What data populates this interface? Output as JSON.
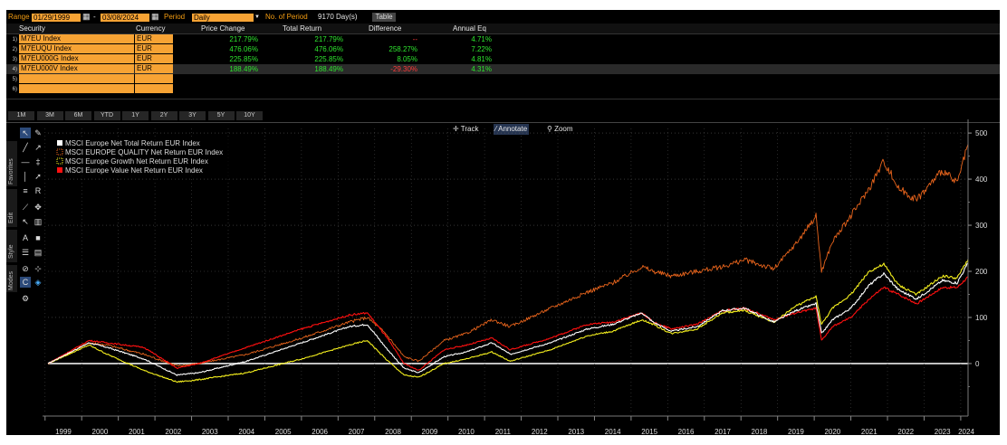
{
  "header": {
    "range_label": "Range",
    "range_start": "01/29/1999",
    "range_sep": "-",
    "range_end": "03/08/2024",
    "period_label": "Period",
    "period_value": "Daily",
    "num_period_label": "No. of Period",
    "num_period_value": "9170 Day(s)",
    "table_button": "Table"
  },
  "table": {
    "columns": [
      "Security",
      "Currency",
      "Price Change",
      "Total Return",
      "Difference",
      "Annual Eq"
    ],
    "rows": [
      {
        "num": "1)",
        "security": "M7EU Index",
        "currency": "EUR",
        "price_change": "217.79%",
        "total_return": "217.79%",
        "difference": "--",
        "annual_eq": "4.71%"
      },
      {
        "num": "2)",
        "security": "M7EUQU Index",
        "currency": "EUR",
        "price_change": "476.06%",
        "total_return": "476.06%",
        "difference": "258.27%",
        "annual_eq": "7.22%"
      },
      {
        "num": "3)",
        "security": "M7EU000G Index",
        "currency": "EUR",
        "price_change": "225.85%",
        "total_return": "225.85%",
        "difference": "8.05%",
        "annual_eq": "4.81%"
      },
      {
        "num": "4)",
        "security": "M7EU000V Index",
        "currency": "EUR",
        "price_change": "188.49%",
        "total_return": "188.49%",
        "difference": "-29.30%",
        "annual_eq": "4.31%"
      },
      {
        "num": "5)",
        "security": "",
        "currency": ""
      },
      {
        "num": "6)",
        "security": "",
        "currency": ""
      }
    ]
  },
  "timeframes": [
    "1M",
    "3M",
    "6M",
    "YTD",
    "1Y",
    "2Y",
    "3Y",
    "5Y",
    "10Y"
  ],
  "chart_toolbar": {
    "track": "Track",
    "annotate": "Annotate",
    "zoom": "Zoom"
  },
  "side_tabs": [
    "Favorites",
    "Edit",
    "Style",
    "Modes"
  ],
  "colors": {
    "accent": "#f7a334",
    "white_series": "#ffffff",
    "quality": "#e8641c",
    "growth": "#f5f01e",
    "value": "#ff1010",
    "positive": "#2ee52e",
    "negative": "#ff3b3b"
  },
  "chart_data": {
    "type": "line",
    "x_ticks": [
      "1999",
      "2000",
      "2001",
      "2002",
      "2003",
      "2004",
      "2005",
      "2006",
      "2007",
      "2008",
      "2009",
      "2010",
      "2011",
      "2012",
      "2013",
      "2014",
      "2015",
      "2016",
      "2017",
      "2018",
      "2019",
      "2020",
      "2021",
      "2022",
      "2023",
      "2024"
    ],
    "y_ticks": [
      500,
      400,
      300,
      200,
      100,
      0
    ],
    "ylim": [
      -110,
      510
    ],
    "xlim": [
      1999.08,
      2024.2
    ],
    "legend_position": "top-left",
    "grid": true,
    "series": [
      {
        "name": "MSCI Europe Net Total Return EUR Index",
        "color": "#ffffff",
        "x": [
          1999.08,
          2000.2,
          2000.7,
          2001.7,
          2002.6,
          2003.2,
          2004.5,
          2006.0,
          2007.3,
          2007.8,
          2008.3,
          2008.8,
          2009.2,
          2009.9,
          2010.5,
          2011.2,
          2011.7,
          2012.8,
          2013.8,
          2014.5,
          2015.3,
          2015.6,
          2016.1,
          2016.8,
          2017.5,
          2018.1,
          2018.9,
          2019.5,
          2020.05,
          2020.2,
          2020.5,
          2021.0,
          2021.5,
          2021.9,
          2022.3,
          2022.8,
          2023.5,
          2023.9,
          2024.2
        ],
        "y": [
          0,
          45,
          35,
          10,
          -25,
          -20,
          5,
          45,
          80,
          85,
          35,
          -10,
          -20,
          15,
          25,
          45,
          20,
          45,
          75,
          85,
          110,
          90,
          70,
          80,
          115,
          120,
          90,
          115,
          130,
          65,
          95,
          120,
          170,
          195,
          160,
          140,
          180,
          175,
          218
        ]
      },
      {
        "name": "MSCI EUROPE QUALITY Net Return EUR Index",
        "color": "#e8641c",
        "x": [
          1999.08,
          2000.2,
          2000.7,
          2001.7,
          2002.6,
          2003.2,
          2004.5,
          2006.0,
          2007.3,
          2007.8,
          2008.3,
          2008.8,
          2009.2,
          2009.9,
          2010.5,
          2011.2,
          2011.7,
          2012.8,
          2013.8,
          2014.5,
          2015.3,
          2015.6,
          2016.1,
          2016.8,
          2017.5,
          2018.1,
          2018.9,
          2019.5,
          2020.05,
          2020.2,
          2020.5,
          2021.0,
          2021.5,
          2021.9,
          2022.3,
          2022.8,
          2023.5,
          2023.9,
          2024.2
        ],
        "y": [
          0,
          45,
          40,
          20,
          -5,
          0,
          20,
          55,
          90,
          100,
          65,
          15,
          5,
          50,
          65,
          95,
          80,
          120,
          155,
          175,
          210,
          200,
          190,
          200,
          210,
          225,
          205,
          260,
          320,
          200,
          265,
          320,
          380,
          440,
          380,
          355,
          420,
          390,
          476
        ]
      },
      {
        "name": "MSCI Europe Growth Net Return EUR Index",
        "color": "#f5f01e",
        "x": [
          1999.08,
          2000.2,
          2000.7,
          2001.7,
          2002.6,
          2003.2,
          2004.5,
          2006.0,
          2007.3,
          2007.8,
          2008.3,
          2008.8,
          2009.2,
          2009.9,
          2010.5,
          2011.2,
          2011.7,
          2012.8,
          2013.8,
          2014.5,
          2015.3,
          2015.6,
          2016.1,
          2016.8,
          2017.5,
          2018.1,
          2018.9,
          2019.5,
          2020.05,
          2020.2,
          2020.5,
          2021.0,
          2021.5,
          2021.9,
          2022.3,
          2022.8,
          2023.5,
          2023.9,
          2024.2
        ],
        "y": [
          0,
          40,
          20,
          -15,
          -40,
          -35,
          -20,
          10,
          40,
          50,
          10,
          -25,
          -30,
          0,
          10,
          25,
          5,
          30,
          60,
          70,
          95,
          85,
          65,
          75,
          110,
          115,
          90,
          125,
          145,
          85,
          120,
          150,
          200,
          215,
          170,
          150,
          190,
          185,
          226
        ]
      },
      {
        "name": "MSCI Europe Value Net Return EUR Index",
        "color": "#ff1010",
        "x": [
          1999.08,
          2000.2,
          2000.7,
          2001.7,
          2002.6,
          2003.2,
          2004.5,
          2006.0,
          2007.3,
          2007.8,
          2008.3,
          2008.8,
          2009.2,
          2009.9,
          2010.5,
          2011.2,
          2011.7,
          2012.8,
          2013.8,
          2014.5,
          2015.3,
          2015.6,
          2016.1,
          2016.8,
          2017.5,
          2018.1,
          2018.9,
          2019.5,
          2020.05,
          2020.2,
          2020.5,
          2021.0,
          2021.5,
          2021.9,
          2022.3,
          2022.8,
          2023.5,
          2023.9,
          2024.2
        ],
        "y": [
          0,
          50,
          45,
          35,
          -10,
          0,
          35,
          75,
          105,
          110,
          60,
          0,
          -15,
          30,
          40,
          55,
          30,
          55,
          85,
          90,
          110,
          90,
          75,
          85,
          115,
          120,
          95,
          110,
          120,
          50,
          80,
          100,
          140,
          165,
          150,
          130,
          165,
          165,
          188
        ]
      }
    ]
  }
}
